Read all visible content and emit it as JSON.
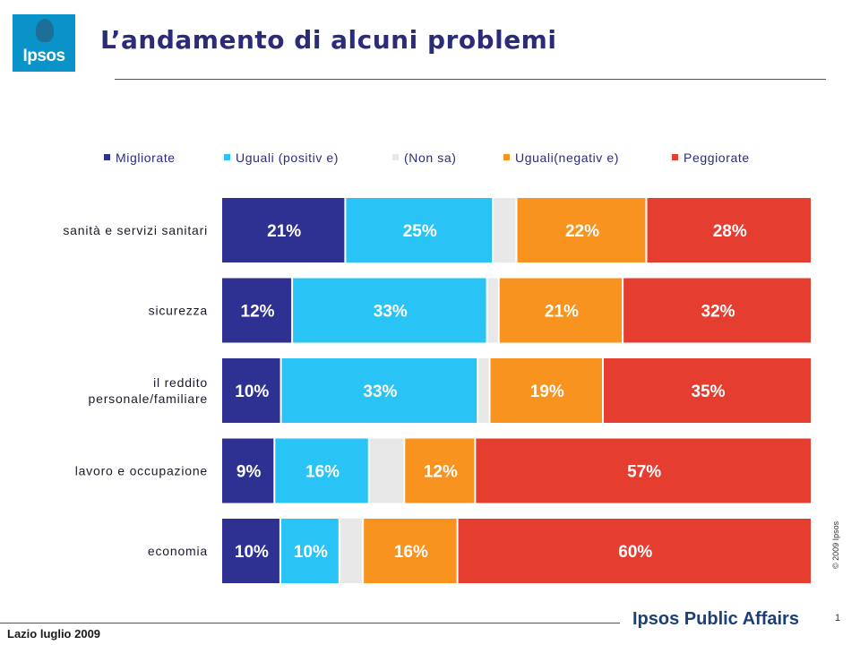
{
  "header": {
    "logo_text": "Ipsos",
    "title": "L’andamento di alcuni problemi"
  },
  "footer": {
    "left": "Lazio luglio 2009",
    "brand": "Ipsos Public Affairs",
    "page_number": "1",
    "copyright": "© 2009 Ipsos"
  },
  "chart_data": {
    "type": "bar",
    "orientation": "horizontal",
    "stacked": "100%",
    "title": "",
    "legend_position": "top",
    "categories": [
      "sanità e servizi sanitari",
      "sicurezza",
      "il reddito personale/familiare",
      "lavoro e occupazione",
      "economia"
    ],
    "category_lines": [
      [
        "sanità e servizi sanitari"
      ],
      [
        "sicurezza"
      ],
      [
        "il reddito",
        "personale/familiare"
      ],
      [
        "lavoro e occupazione"
      ],
      [
        "economia"
      ]
    ],
    "series": [
      {
        "name": "Migliorate",
        "color": "#2e3192",
        "values": [
          21,
          12,
          10,
          9,
          10
        ],
        "labels": [
          "21%",
          "12%",
          "10%",
          "9%",
          "10%"
        ]
      },
      {
        "name": "Uguali (positiv e)",
        "color": "#29c4f5",
        "values": [
          25,
          33,
          33,
          16,
          10
        ],
        "labels": [
          "25%",
          "33%",
          "33%",
          "16%",
          "10%"
        ]
      },
      {
        "name": "(Non sa)",
        "color": "#e8e8e8",
        "values": [
          4,
          2,
          2,
          6,
          4
        ],
        "labels": [
          "",
          "",
          "",
          "",
          ""
        ]
      },
      {
        "name": "Uguali(negativ e)",
        "color": "#f7931e",
        "values": [
          22,
          21,
          19,
          12,
          16
        ],
        "labels": [
          "22%",
          "21%",
          "19%",
          "12%",
          "16%"
        ]
      },
      {
        "name": "Peggiorate",
        "color": "#e53d30",
        "values": [
          28,
          32,
          35,
          57,
          60
        ],
        "labels": [
          "28%",
          "32%",
          "35%",
          "57%",
          "60%"
        ]
      }
    ]
  }
}
